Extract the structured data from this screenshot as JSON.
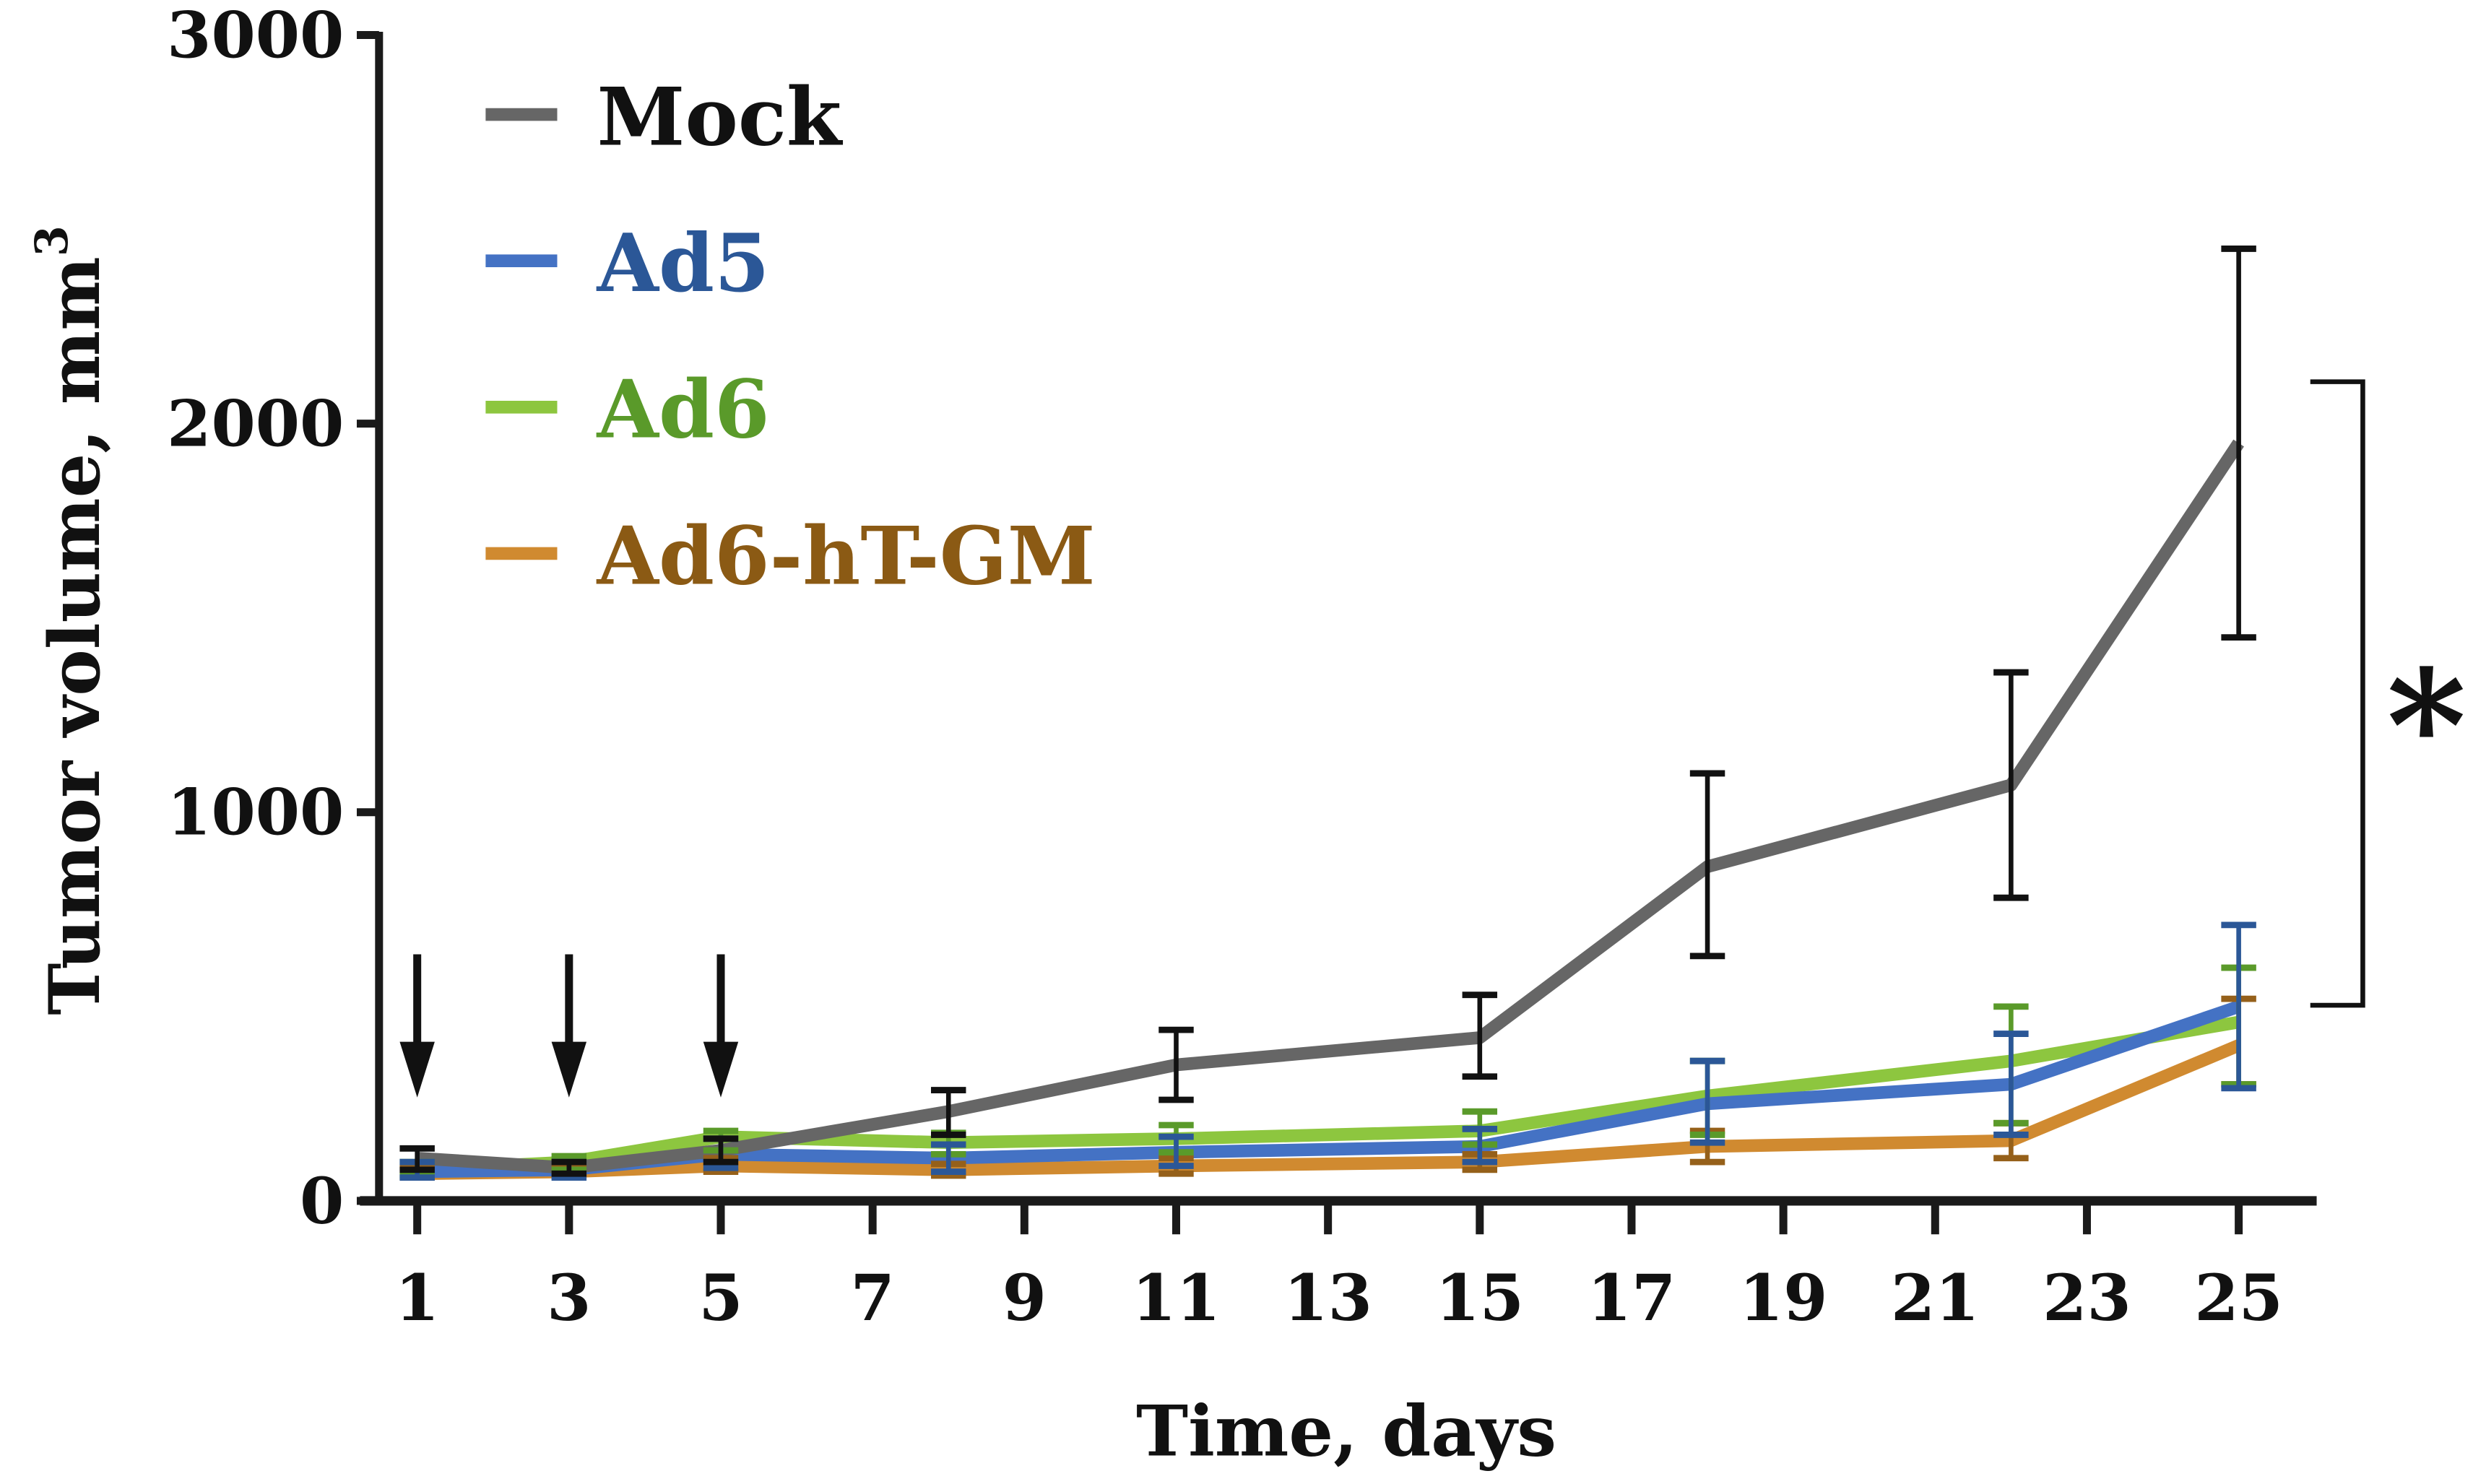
{
  "chart_data": {
    "type": "line",
    "xlabel": "Time, days",
    "ylabel": "Tumor volume, mm",
    "ylabel_superscript": "3",
    "xlim": [
      1,
      25
    ],
    "ylim": [
      0,
      3000
    ],
    "xticks": [
      1,
      3,
      5,
      7,
      9,
      11,
      13,
      15,
      17,
      19,
      21,
      23,
      25
    ],
    "yticks": [
      0,
      1000,
      2000,
      3000
    ],
    "grid": false,
    "legend_placement": "top-left",
    "treatment_arrows_at_days": [
      1,
      3,
      5
    ],
    "significance": {
      "label": "*",
      "between": [
        "Mock",
        "treated groups"
      ],
      "at_day": 25
    },
    "x": [
      1,
      3,
      5,
      8,
      11,
      15,
      18,
      22,
      25
    ],
    "series": [
      {
        "name": "Mock",
        "color": "#666666",
        "error_color": "#111111",
        "text_color": "#111111",
        "values": [
          110,
          85,
          130,
          230,
          350,
          420,
          860,
          1070,
          1950
        ],
        "error_low": [
          80,
          70,
          100,
          170,
          260,
          320,
          630,
          780,
          1450
        ],
        "error_high": [
          135,
          100,
          160,
          285,
          440,
          530,
          1100,
          1360,
          2450
        ]
      },
      {
        "name": "Ad5",
        "color": "#4472c4",
        "error_color": "#2b5797",
        "text_color": "#2b5797",
        "values": [
          75,
          80,
          120,
          110,
          125,
          140,
          250,
          300,
          500
        ],
        "error_low": [
          60,
          60,
          85,
          75,
          90,
          100,
          150,
          170,
          290
        ],
        "error_high": [
          100,
          100,
          160,
          145,
          165,
          185,
          360,
          430,
          710
        ]
      },
      {
        "name": "Ad6",
        "color": "#8dc63f",
        "error_color": "#5a9a2a",
        "text_color": "#5a9a2a",
        "values": [
          80,
          100,
          165,
          150,
          160,
          180,
          270,
          360,
          460
        ],
        "error_low": [
          65,
          80,
          130,
          120,
          125,
          145,
          170,
          200,
          300
        ],
        "error_high": [
          100,
          115,
          180,
          175,
          195,
          230,
          360,
          500,
          600
        ]
      },
      {
        "name": "Ad6-hT-GM",
        "color": "#d08a30",
        "error_color": "#95601a",
        "text_color": "#8b5a14",
        "values": [
          70,
          75,
          90,
          80,
          90,
          100,
          140,
          155,
          400
        ],
        "error_low": [
          60,
          65,
          75,
          65,
          70,
          80,
          100,
          110,
          300
        ],
        "error_high": [
          85,
          85,
          110,
          95,
          110,
          120,
          180,
          200,
          520
        ]
      }
    ]
  }
}
